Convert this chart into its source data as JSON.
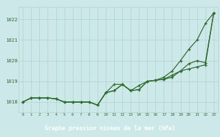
{
  "x": [
    0,
    1,
    2,
    3,
    4,
    5,
    6,
    7,
    8,
    9,
    10,
    11,
    12,
    13,
    14,
    15,
    16,
    17,
    18,
    19,
    20,
    21,
    22,
    23
  ],
  "line1": [
    1018.0,
    1018.2,
    1018.2,
    1018.2,
    1018.15,
    1018.0,
    1018.0,
    1018.0,
    1018.0,
    1017.85,
    1018.45,
    1018.85,
    1018.85,
    1018.55,
    1018.8,
    1019.0,
    1019.05,
    1019.1,
    1019.2,
    1019.5,
    1019.85,
    1020.0,
    1019.9,
    1022.3
  ],
  "line2": [
    1018.0,
    1018.2,
    1018.2,
    1018.2,
    1018.15,
    1018.0,
    1018.0,
    1018.0,
    1018.0,
    1017.85,
    1018.45,
    1018.55,
    1018.85,
    1018.55,
    1018.6,
    1019.0,
    1019.05,
    1019.1,
    1019.3,
    1019.5,
    1019.6,
    1019.7,
    1019.8,
    1022.3
  ],
  "line3": [
    1018.0,
    1018.2,
    1018.2,
    1018.2,
    1018.15,
    1018.0,
    1018.0,
    1018.0,
    1018.0,
    1017.85,
    1018.45,
    1018.55,
    1018.85,
    1018.55,
    1018.6,
    1019.0,
    1019.05,
    1019.2,
    1019.5,
    1020.0,
    1020.55,
    1021.0,
    1021.8,
    1022.3
  ],
  "ylim": [
    1017.5,
    1022.6
  ],
  "yticks": [
    1018,
    1019,
    1020,
    1021,
    1022
  ],
  "xticks": [
    0,
    1,
    2,
    3,
    4,
    5,
    6,
    7,
    8,
    9,
    10,
    11,
    12,
    13,
    14,
    15,
    16,
    17,
    18,
    19,
    20,
    21,
    22,
    23
  ],
  "line_color": "#2d6a2d",
  "bg_color": "#cce8e8",
  "grid_color": "#b0d0d0",
  "xlabel": "Graphe pression niveau de la mer (hPa)",
  "xlabel_bg": "#3a7a3a",
  "tick_label_color": "#2d6a2d"
}
